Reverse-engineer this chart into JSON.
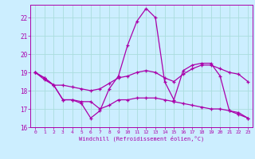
{
  "xlabel": "Windchill (Refroidissement éolien,°C)",
  "background_color": "#cceeff",
  "grid_color": "#aadddd",
  "line_color": "#aa00aa",
  "x": [
    0,
    1,
    2,
    3,
    4,
    5,
    6,
    7,
    8,
    9,
    10,
    11,
    12,
    13,
    14,
    15,
    16,
    17,
    18,
    19,
    20,
    21,
    22,
    23
  ],
  "line1": [
    19.0,
    18.6,
    18.3,
    17.5,
    17.5,
    17.3,
    16.5,
    16.9,
    18.1,
    18.8,
    20.5,
    21.8,
    22.5,
    22.0,
    18.5,
    17.5,
    19.1,
    19.4,
    19.5,
    19.5,
    18.8,
    16.9,
    16.7,
    16.5
  ],
  "line2": [
    19.0,
    18.7,
    18.3,
    18.3,
    18.2,
    18.1,
    18.0,
    18.1,
    18.4,
    18.7,
    18.8,
    19.0,
    19.1,
    19.0,
    18.7,
    18.5,
    18.9,
    19.2,
    19.4,
    19.4,
    19.2,
    19.0,
    18.9,
    18.5
  ],
  "line3": [
    19.0,
    18.7,
    18.3,
    17.5,
    17.5,
    17.4,
    17.4,
    17.0,
    17.2,
    17.5,
    17.5,
    17.6,
    17.6,
    17.6,
    17.5,
    17.4,
    17.3,
    17.2,
    17.1,
    17.0,
    17.0,
    16.9,
    16.8,
    16.5
  ],
  "ylim": [
    16,
    22.7
  ],
  "xlim": [
    -0.5,
    23.5
  ],
  "yticks": [
    16,
    17,
    18,
    19,
    20,
    21,
    22
  ],
  "xticks": [
    0,
    1,
    2,
    3,
    4,
    5,
    6,
    7,
    8,
    9,
    10,
    11,
    12,
    13,
    14,
    15,
    16,
    17,
    18,
    19,
    20,
    21,
    22,
    23
  ]
}
